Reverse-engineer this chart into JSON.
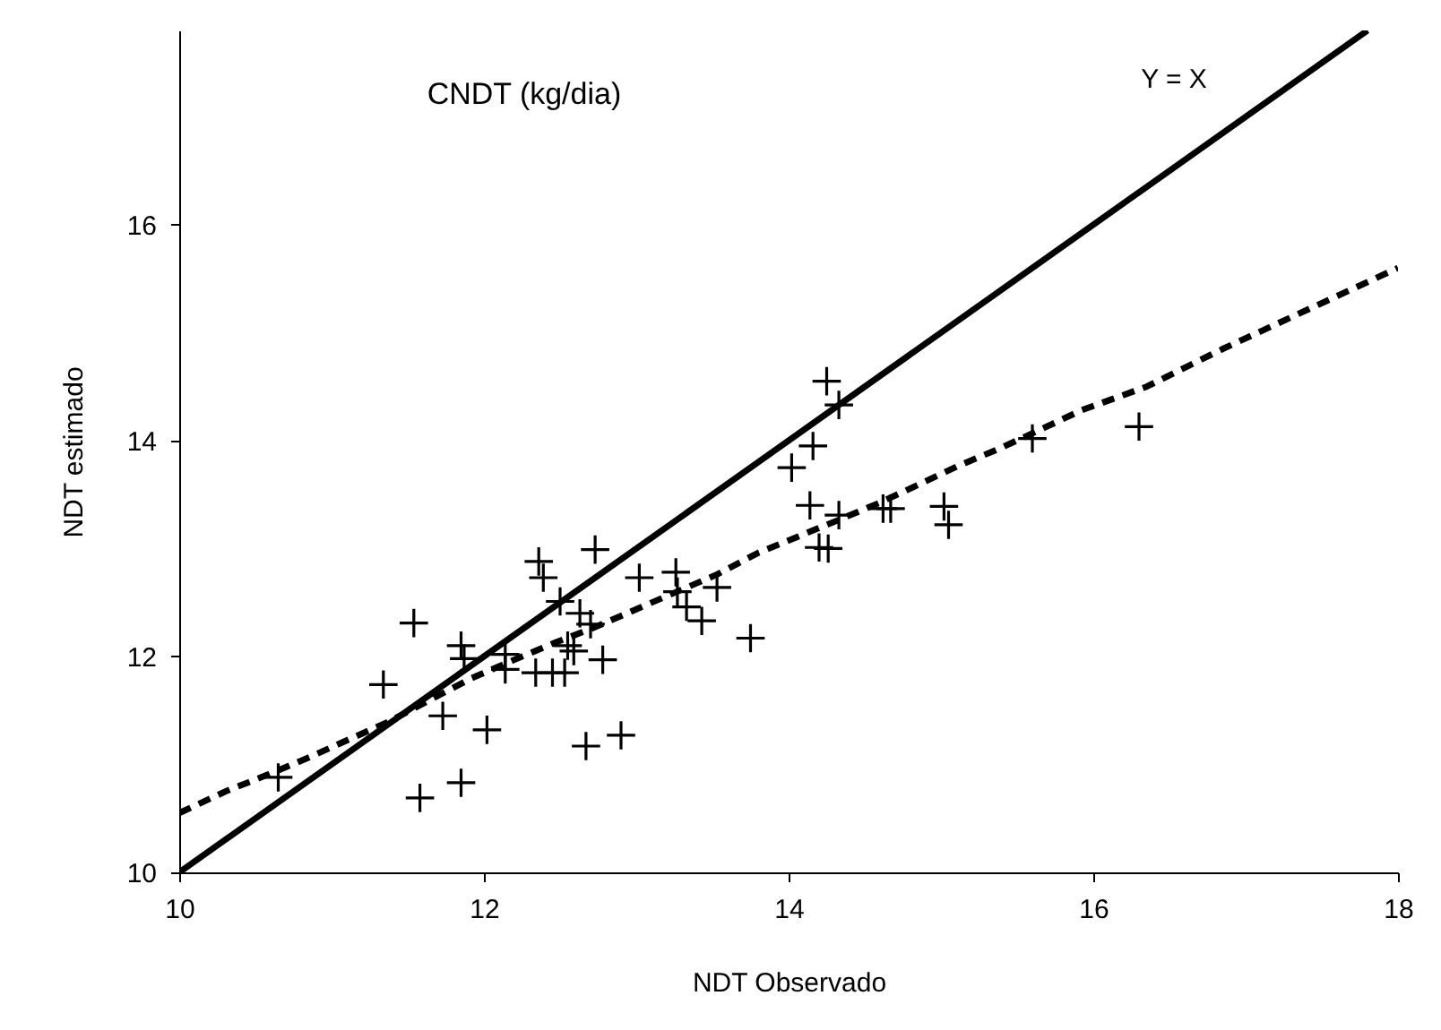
{
  "chart_data": {
    "type": "scatter",
    "title": "CNDT (kg/dia)",
    "xlabel": "NDT Observado",
    "ylabel": "NDT estimado",
    "xlim": [
      10,
      18
    ],
    "ylim": [
      10,
      17.8
    ],
    "xticks": [
      10,
      12,
      14,
      16,
      18
    ],
    "yticks": [
      10,
      12,
      14,
      16
    ],
    "grid": false,
    "annotations": [
      "Y = X"
    ],
    "series": [
      {
        "marker": "cross",
        "color": "#000000",
        "x": [
          10.65,
          11.34,
          11.54,
          11.58,
          11.73,
          11.85,
          11.87,
          11.85,
          12.02,
          12.14,
          12.14,
          12.34,
          12.45,
          12.53,
          12.36,
          12.39,
          12.5,
          12.63,
          12.59,
          12.55,
          12.7,
          12.73,
          12.78,
          12.67,
          12.9,
          13.02,
          13.26,
          13.27,
          13.33,
          13.43,
          13.53,
          13.75,
          14.02,
          14.33,
          14.16,
          14.14,
          14.33,
          14.2,
          14.26,
          14.62,
          14.67,
          15.02,
          15.05,
          15.6,
          16.3,
          14.25
        ],
        "values": [
          10.88,
          11.74,
          12.31,
          10.69,
          11.45,
          12.1,
          11.98,
          10.83,
          11.32,
          11.88,
          12.02,
          11.85,
          11.85,
          11.85,
          12.88,
          12.73,
          12.51,
          12.4,
          12.05,
          12.1,
          12.3,
          12.99,
          11.97,
          11.17,
          11.27,
          12.73,
          12.78,
          12.6,
          12.46,
          12.33,
          12.64,
          12.17,
          13.75,
          14.33,
          13.95,
          13.4,
          13.31,
          13.01,
          13.0,
          13.37,
          13.37,
          13.39,
          13.22,
          14.02,
          14.13,
          14.55
        ]
      },
      {
        "type": "line",
        "line_style": "dashed",
        "color": "#000000",
        "x": [
          10,
          10.32,
          10.59,
          10.86,
          11.38,
          11.65,
          11.92,
          12.2,
          12.47,
          12.71,
          13.02,
          13.53,
          13.8,
          14.32,
          14.59,
          14.85,
          15.12,
          15.39,
          15.65,
          15.92,
          16.35,
          16.85,
          18
        ],
        "values": [
          10.55,
          10.76,
          10.91,
          11.07,
          11.4,
          11.6,
          11.8,
          11.97,
          12.13,
          12.26,
          12.45,
          12.76,
          12.96,
          13.26,
          13.42,
          13.59,
          13.77,
          13.93,
          14.1,
          14.28,
          14.5,
          14.85,
          15.6
        ]
      },
      {
        "type": "line",
        "line_style": "solid",
        "color": "#000000",
        "x": [
          10,
          17.8
        ],
        "values": [
          10,
          17.8
        ]
      }
    ]
  }
}
